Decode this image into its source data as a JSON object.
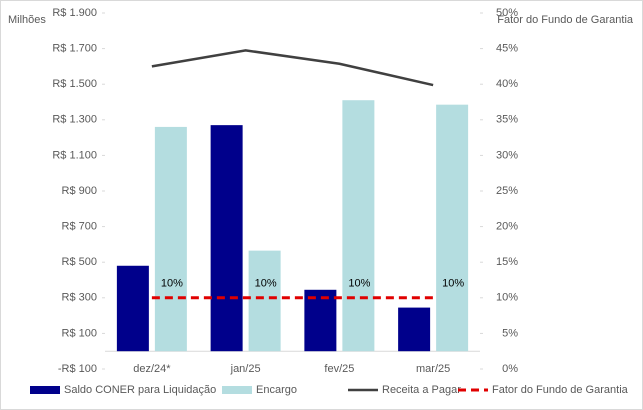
{
  "chart_data": {
    "type": "combo",
    "y_axis_label": "Milhões",
    "y2_axis_label": "Fator do Fundo de Garantia",
    "categories": [
      "dez/24*",
      "jan/25",
      "fev/25",
      "mar/25"
    ],
    "series": [
      {
        "name": "Saldo CONER para Liquidação",
        "type": "bar",
        "color": "#00008b",
        "values": [
          480,
          1270,
          345,
          245
        ]
      },
      {
        "name": "Encargo",
        "type": "bar",
        "color": "#b4dde0",
        "values": [
          1260,
          565,
          1410,
          1385
        ]
      },
      {
        "name": "Receita a Pagar",
        "type": "line",
        "color": "#404040",
        "values": [
          1600,
          1690,
          1615,
          1495
        ]
      },
      {
        "name": "Fator do Fundo de Garantia",
        "type": "line",
        "dashed": true,
        "axis": "y2",
        "color": "#e00000",
        "values": [
          10,
          10,
          10,
          10
        ],
        "value_labels": [
          "10%",
          "10%",
          "10%",
          "10%"
        ]
      }
    ],
    "ylim": [
      -100,
      1900
    ],
    "yticks": [
      {
        "value": -100,
        "label": "-R$ 100"
      },
      {
        "value": 100,
        "label": "R$ 100"
      },
      {
        "value": 300,
        "label": "R$ 300"
      },
      {
        "value": 500,
        "label": "R$ 500"
      },
      {
        "value": 700,
        "label": "R$ 700"
      },
      {
        "value": 900,
        "label": "R$ 900"
      },
      {
        "value": 1100,
        "label": "R$ 1.100"
      },
      {
        "value": 1300,
        "label": "R$ 1.300"
      },
      {
        "value": 1500,
        "label": "R$ 1.500"
      },
      {
        "value": 1700,
        "label": "R$ 1.700"
      },
      {
        "value": 1900,
        "label": "R$ 1.900"
      }
    ],
    "y2lim": [
      0,
      50
    ],
    "y2ticks": [
      {
        "value": 0,
        "label": "0%"
      },
      {
        "value": 5,
        "label": "5%"
      },
      {
        "value": 10,
        "label": "10%"
      },
      {
        "value": 15,
        "label": "15%"
      },
      {
        "value": 20,
        "label": "20%"
      },
      {
        "value": 25,
        "label": "25%"
      },
      {
        "value": 30,
        "label": "30%"
      },
      {
        "value": 35,
        "label": "35%"
      },
      {
        "value": 40,
        "label": "40%"
      },
      {
        "value": 45,
        "label": "45%"
      },
      {
        "value": 50,
        "label": "50%"
      }
    ],
    "legend": "bottom"
  }
}
